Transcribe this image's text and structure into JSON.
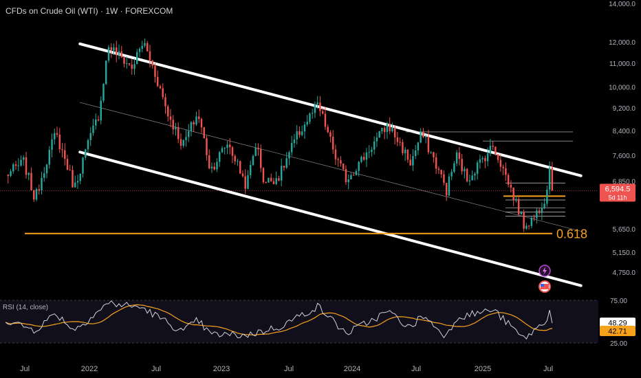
{
  "title": "CFDs on Crude Oil (WTI) · 1W · FOREXCOM",
  "rsi_label": "RSI (14, close)",
  "fib_label": "0.618",
  "price_badge": "6,594.5",
  "countdown_badge": "5d 11h",
  "rsi_badge_1": "48.29",
  "rsi_badge_2": "42.71",
  "chart_data": [
    {
      "type": "candlestick",
      "title": "CFDs on Crude Oil (WTI) · 1W · FOREXCOM",
      "x_ticks": [
        "Jul",
        "2022",
        "Jul",
        "2023",
        "Jul",
        "2024",
        "Jul",
        "2025",
        "Jul"
      ],
      "y_ticks": [
        "14,000.0",
        "12,000.0",
        "11,000.0",
        "10,000.0",
        "9,200.0",
        "8,400.0",
        "7,600.0",
        "6,850.0",
        "5,650.0",
        "5,150.0",
        "4,750.0"
      ],
      "y_range": [
        4300,
        14000
      ],
      "y_scale": "log",
      "anchors": [
        {
          "date": "2021-06-01",
          "price": 7000
        },
        {
          "date": "2021-07-20",
          "price": 7400
        },
        {
          "date": "2021-08-20",
          "price": 6350
        },
        {
          "date": "2021-10-15",
          "price": 8300
        },
        {
          "date": "2021-12-05",
          "price": 6650
        },
        {
          "date": "2022-02-10",
          "price": 9000
        },
        {
          "date": "2022-03-08",
          "price": 11800
        },
        {
          "date": "2022-05-10",
          "price": 10800
        },
        {
          "date": "2022-06-10",
          "price": 12000
        },
        {
          "date": "2022-08-15",
          "price": 9000
        },
        {
          "date": "2022-09-25",
          "price": 7900
        },
        {
          "date": "2022-11-05",
          "price": 9000
        },
        {
          "date": "2022-12-09",
          "price": 7150
        },
        {
          "date": "2023-01-25",
          "price": 8000
        },
        {
          "date": "2023-03-17",
          "price": 6700
        },
        {
          "date": "2023-04-12",
          "price": 8000
        },
        {
          "date": "2023-05-04",
          "price": 6800
        },
        {
          "date": "2023-06-15",
          "price": 7000
        },
        {
          "date": "2023-08-01",
          "price": 8200
        },
        {
          "date": "2023-09-27",
          "price": 9300
        },
        {
          "date": "2023-11-15",
          "price": 7500
        },
        {
          "date": "2023-12-13",
          "price": 6900
        },
        {
          "date": "2024-01-20",
          "price": 7400
        },
        {
          "date": "2024-04-05",
          "price": 8600
        },
        {
          "date": "2024-06-05",
          "price": 7350
        },
        {
          "date": "2024-07-05",
          "price": 8300
        },
        {
          "date": "2024-09-10",
          "price": 6600
        },
        {
          "date": "2024-10-07",
          "price": 7600
        },
        {
          "date": "2024-11-05",
          "price": 6900
        },
        {
          "date": "2025-01-15",
          "price": 7900
        },
        {
          "date": "2025-03-05",
          "price": 6600
        },
        {
          "date": "2025-04-08",
          "price": 5750
        },
        {
          "date": "2025-05-05",
          "price": 5900
        },
        {
          "date": "2025-06-06",
          "price": 6450
        },
        {
          "date": "2025-06-20",
          "price": 7450
        },
        {
          "date": "2025-06-24",
          "price": 6594.5
        }
      ],
      "annotations": {
        "last_price": 6594.5,
        "fib_level": {
          "label": "0.618",
          "price": 5550
        },
        "channel_upper": [
          {
            "date": "2021-12-20",
            "price": 11900
          },
          {
            "date": "2025-09-10",
            "price": 7000
          }
        ],
        "channel_lower": [
          {
            "date": "2021-12-20",
            "price": 7700
          },
          {
            "date": "2025-09-10",
            "price": 4500
          }
        ],
        "channel_mid": [
          {
            "date": "2021-12-20",
            "price": 9400
          },
          {
            "date": "2025-09-10",
            "price": 5600
          }
        ],
        "horizontal_levels": [
          8350,
          8050,
          6800,
          6450,
          6350,
          6150,
          6050,
          5950
        ]
      }
    },
    {
      "type": "line",
      "title": "RSI (14, close)",
      "y_ticks": [
        "75.00",
        "25.00"
      ],
      "y_range": [
        20,
        80
      ],
      "series": [
        {
          "color": "#d1d4dc",
          "last": 48.29
        },
        {
          "color": "#f7a21b",
          "last": 42.71
        }
      ],
      "rsi_anchors": [
        {
          "date": "2021-06-01",
          "value": 52
        },
        {
          "date": "2021-08-20",
          "value": 40
        },
        {
          "date": "2021-10-15",
          "value": 60
        },
        {
          "date": "2021-12-05",
          "value": 40
        },
        {
          "date": "2022-03-08",
          "value": 72
        },
        {
          "date": "2022-06-10",
          "value": 66
        },
        {
          "date": "2022-09-25",
          "value": 38
        },
        {
          "date": "2022-11-05",
          "value": 52
        },
        {
          "date": "2022-12-09",
          "value": 35
        },
        {
          "date": "2023-03-17",
          "value": 34
        },
        {
          "date": "2023-06-15",
          "value": 44
        },
        {
          "date": "2023-09-27",
          "value": 68
        },
        {
          "date": "2023-12-13",
          "value": 36
        },
        {
          "date": "2024-04-05",
          "value": 62
        },
        {
          "date": "2024-06-05",
          "value": 42
        },
        {
          "date": "2024-07-05",
          "value": 58
        },
        {
          "date": "2024-09-10",
          "value": 33
        },
        {
          "date": "2024-10-07",
          "value": 55
        },
        {
          "date": "2025-01-15",
          "value": 64
        },
        {
          "date": "2025-04-08",
          "value": 30
        },
        {
          "date": "2025-06-06",
          "value": 50
        },
        {
          "date": "2025-06-20",
          "value": 68
        },
        {
          "date": "2025-06-24",
          "value": 48.29
        }
      ]
    }
  ]
}
